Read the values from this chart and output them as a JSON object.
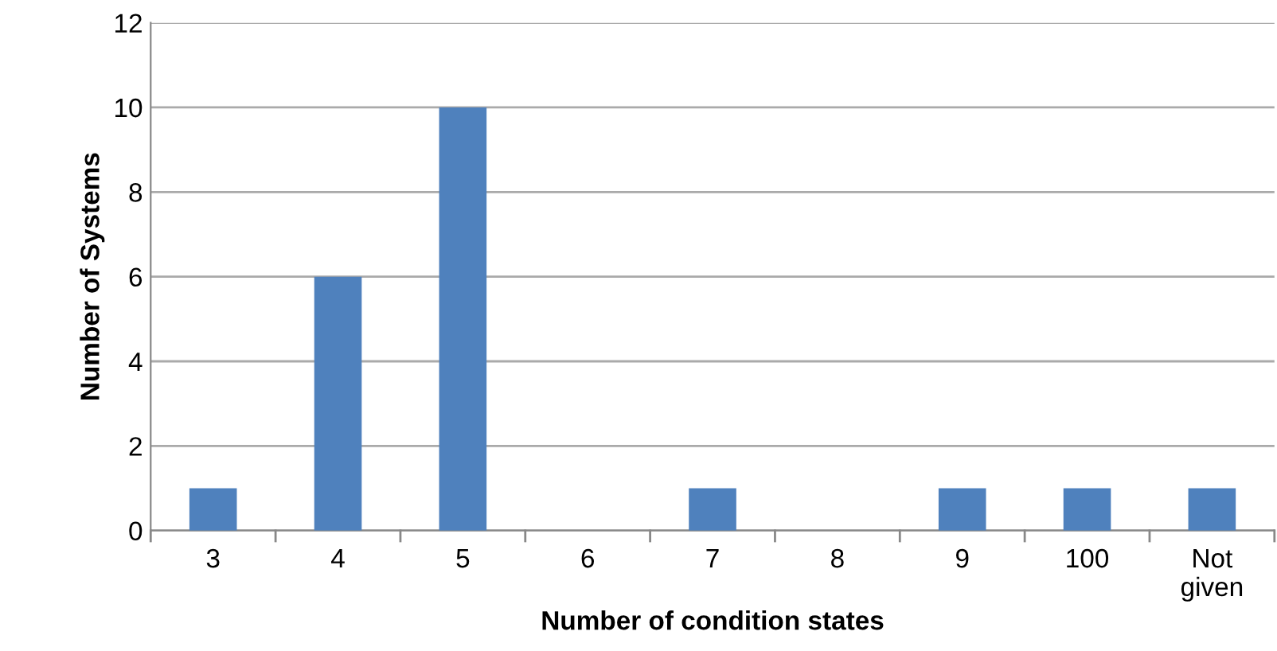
{
  "chart_data": {
    "type": "bar",
    "xlabel": "Number of condition states",
    "ylabel": "Number of Systems",
    "categories": [
      "3",
      "4",
      "5",
      "6",
      "7",
      "8",
      "9",
      "100",
      "Not\ngiven"
    ],
    "values": [
      1,
      6,
      10,
      0,
      1,
      0,
      1,
      1,
      1
    ],
    "color": "#4f81bd",
    "ylim": [
      0,
      12
    ],
    "yticks": [
      0,
      2,
      4,
      6,
      8,
      10,
      12
    ],
    "grid": "y"
  }
}
